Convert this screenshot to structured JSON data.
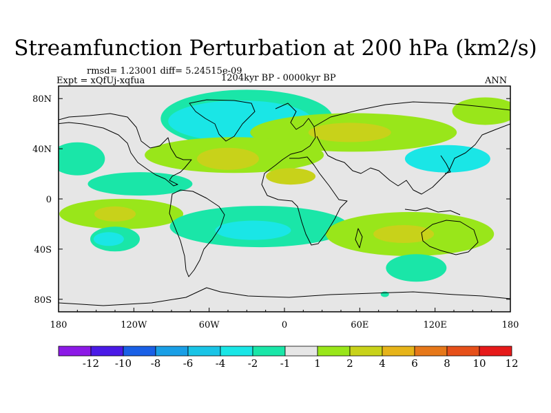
{
  "title": "Streamfunction Perturbation at 200 hPa (km2/s)",
  "stats": "rmsd= 1.23001 diff= 5.24515e-09",
  "expt": "Expt = xQfUj-xqfua",
  "period": "1204kyr BP - 0000kyr BP",
  "season": "ANN",
  "axes": {
    "x_ticks": [
      "180",
      "120W",
      "60W",
      "0",
      "60E",
      "120E",
      "180"
    ],
    "y_ticks": [
      "80N",
      "40N",
      "0",
      "40S",
      "80S"
    ]
  },
  "colors": {
    "neutral": "#e6e6e6",
    "land_outline": "#000000",
    "green_light": "#99e61a",
    "yellow": "#c8c810",
    "cyan": "#1ad2e6",
    "teal": "#1ae6b4"
  },
  "legend": {
    "colors": [
      "#8c1ae6",
      "#4a1ae6",
      "#1a60e6",
      "#1a9fe6",
      "#1ac4e6",
      "#1ae6e6",
      "#1ae6a8",
      "#e6e6e6",
      "#99e61a",
      "#c8d21a",
      "#e6b41a",
      "#e6781a",
      "#e6501a",
      "#e61a1a"
    ],
    "labels": [
      "-12",
      "-10",
      "-8",
      "-6",
      "-4",
      "-2",
      "-1",
      "1",
      "2",
      "4",
      "6",
      "8",
      "10",
      "12"
    ]
  },
  "chart_data": {
    "type": "contour-map",
    "title": "Streamfunction Perturbation at 200 hPa (km2/s)",
    "xlim": [
      -180,
      180
    ],
    "ylim": [
      -90,
      90
    ],
    "levels": [
      -12,
      -10,
      -8,
      -6,
      -4,
      -2,
      -1,
      1,
      2,
      4,
      6,
      8,
      10,
      12
    ],
    "features": [
      {
        "name": "north-atlantic-negative",
        "lon": -35,
        "lat": 62,
        "value": -3
      },
      {
        "name": "north-atlantic-outer",
        "lon": -30,
        "lat": 64,
        "value": -1.5
      },
      {
        "name": "eurasia-positive-outer",
        "lon": 55,
        "lat": 53,
        "value": 1.5
      },
      {
        "name": "eurasia-positive-core",
        "lon": 52,
        "lat": 53,
        "value": 3
      },
      {
        "name": "arctic-east-positive",
        "lon": 160,
        "lat": 70,
        "value": 1.5
      },
      {
        "name": "subtropical-atlantic-positive",
        "lon": -40,
        "lat": 35,
        "value": 1.5
      },
      {
        "name": "subtropical-atlantic-core",
        "lon": -45,
        "lat": 32,
        "value": 3
      },
      {
        "name": "west-africa-core",
        "lon": 5,
        "lat": 18,
        "value": 3
      },
      {
        "name": "pacific-north-negative",
        "lon": -165,
        "lat": 32,
        "value": -1.5
      },
      {
        "name": "east-asia-negative",
        "lon": 130,
        "lat": 32,
        "value": -2
      },
      {
        "name": "pacific-equatorial-negative",
        "lon": -115,
        "lat": 12,
        "value": -1.5
      },
      {
        "name": "pacific-south-positive",
        "lon": -130,
        "lat": -12,
        "value": 1.5
      },
      {
        "name": "pacific-south-core",
        "lon": -135,
        "lat": -12,
        "value": 3
      },
      {
        "name": "south-atlantic-negative",
        "lon": -20,
        "lat": -22,
        "value": -1.5
      },
      {
        "name": "south-atlantic-core",
        "lon": -25,
        "lat": -25,
        "value": -3
      },
      {
        "name": "indian-ocean-positive",
        "lon": 100,
        "lat": -28,
        "value": 1.5
      },
      {
        "name": "indian-ocean-core",
        "lon": 95,
        "lat": -28,
        "value": 3
      },
      {
        "name": "southeast-pacific-negative",
        "lon": -135,
        "lat": -32,
        "value": -1.5
      },
      {
        "name": "southeast-pacific-core",
        "lon": -140,
        "lat": -32,
        "value": -3
      },
      {
        "name": "southern-ocean-negative",
        "lon": 105,
        "lat": -55,
        "value": -1.5
      },
      {
        "name": "antarctic-small-negative",
        "lon": 80,
        "lat": -76,
        "value": -1.5
      }
    ]
  }
}
